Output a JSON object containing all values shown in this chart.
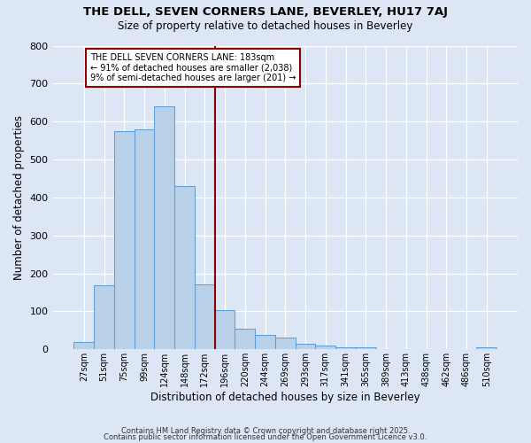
{
  "title1": "THE DELL, SEVEN CORNERS LANE, BEVERLEY, HU17 7AJ",
  "title2": "Size of property relative to detached houses in Beverley",
  "xlabel": "Distribution of detached houses by size in Beverley",
  "ylabel": "Number of detached properties",
  "bins": [
    "27sqm",
    "51sqm",
    "75sqm",
    "99sqm",
    "124sqm",
    "148sqm",
    "172sqm",
    "196sqm",
    "220sqm",
    "244sqm",
    "269sqm",
    "293sqm",
    "317sqm",
    "341sqm",
    "365sqm",
    "389sqm",
    "413sqm",
    "438sqm",
    "462sqm",
    "486sqm",
    "510sqm"
  ],
  "counts": [
    20,
    168,
    575,
    580,
    640,
    430,
    170,
    103,
    55,
    38,
    30,
    15,
    10,
    6,
    5,
    0,
    0,
    0,
    0,
    0,
    5
  ],
  "bar_color": "#b8d0e8",
  "bar_edgecolor": "#5b9bd5",
  "bg_color": "#dce6f5",
  "grid_color": "#ffffff",
  "vline_color": "#8b0000",
  "annotation_title": "THE DELL SEVEN CORNERS LANE: 183sqm",
  "annotation_line1": "← 91% of detached houses are smaller (2,038)",
  "annotation_line2": "9% of semi-detached houses are larger (201) →",
  "annotation_box_color": "#ffffff",
  "annotation_box_edgecolor": "#8b0000",
  "ylim": [
    0,
    800
  ],
  "yticks": [
    0,
    100,
    200,
    300,
    400,
    500,
    600,
    700,
    800
  ],
  "footer1": "Contains HM Land Registry data © Crown copyright and database right 2025.",
  "footer2": "Contains public sector information licensed under the Open Government Licence v3.0."
}
